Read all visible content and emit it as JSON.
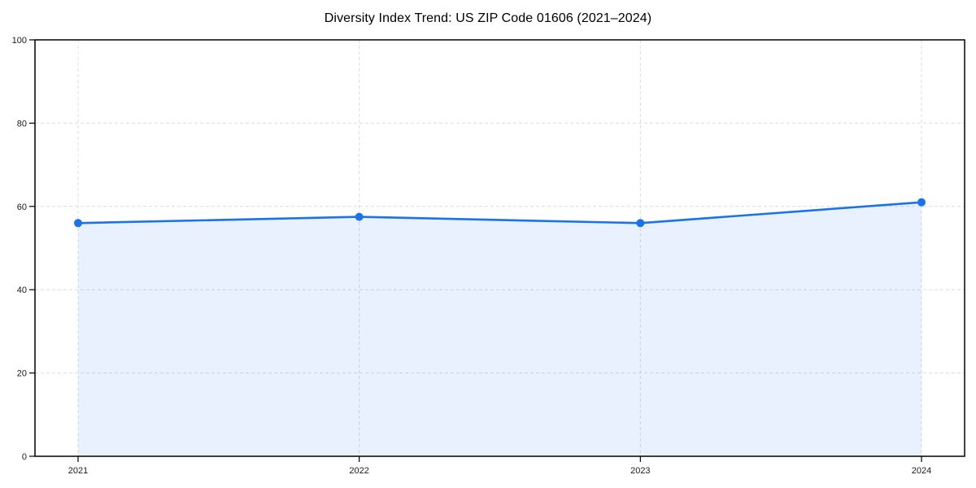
{
  "chart_data": {
    "type": "area",
    "title": "Diversity Index Trend: US ZIP Code 01606 (2021–2024)",
    "categories": [
      "2021",
      "2022",
      "2023",
      "2024"
    ],
    "series": [
      {
        "name": "Diversity Index",
        "values": [
          56,
          57.5,
          56,
          61
        ]
      }
    ],
    "xlabel": "",
    "ylabel": "",
    "ylim": [
      0,
      100
    ],
    "yticks": [
      0,
      20,
      40,
      60,
      80,
      100
    ],
    "grid": true,
    "grid_style": "dashed",
    "legend": false,
    "line_color": "#1a73e8",
    "fill_color": "rgba(26,115,232,0.10)",
    "grid_color": "#dcdcdc",
    "frame_color": "#000000",
    "marker": "circle"
  }
}
